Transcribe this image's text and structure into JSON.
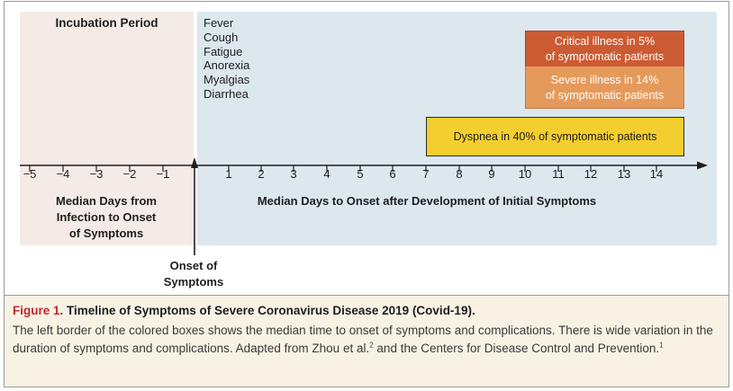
{
  "diagram": {
    "incubation_title": "Incubation Period",
    "symptoms": [
      "Fever",
      "Cough",
      "Fatigue",
      "Anorexia",
      "Myalgias",
      "Diarrhea"
    ],
    "complications": {
      "critical": [
        "Critical illness in 5%",
        "of symptomatic patients"
      ],
      "severe": [
        "Severe illness in 14%",
        "of symptomatic patients"
      ],
      "dyspnea": "Dyspnea in 40% of symptomatic patients"
    },
    "colors": {
      "incubation_bg": "#f4ebe6",
      "symptoms_bg": "#dce7ee",
      "critical": "#cc5b33",
      "severe": "#e59a5b",
      "dyspnea": "#f4ce2e",
      "caption_figure_label": "#c0282d"
    },
    "axis": {
      "ticks": [
        "−5",
        "−4",
        "−3",
        "−2",
        "−1",
        "1",
        "2",
        "3",
        "4",
        "5",
        "6",
        "7",
        "8",
        "9",
        "10",
        "11",
        "12",
        "13",
        "14"
      ],
      "left_title": [
        "Median Days from",
        "Infection to Onset",
        "of Symptoms"
      ],
      "right_title": "Median Days to Onset after Development of Initial Symptoms"
    },
    "onset_label": [
      "Onset of",
      "Symptoms"
    ]
  },
  "caption": {
    "figure_label": "Figure 1.",
    "title": "Timeline of Symptoms of Severe Coronavirus Disease 2019 (Covid-19).",
    "body_part1": "The left border of the colored boxes shows the median time to onset of symptoms and complications. There is wide variation in the duration of symptoms and complications. Adapted from Zhou et al.",
    "ref1": "2",
    "body_part2": " and the Centers for Disease Control and Prevention.",
    "ref2": "1"
  }
}
